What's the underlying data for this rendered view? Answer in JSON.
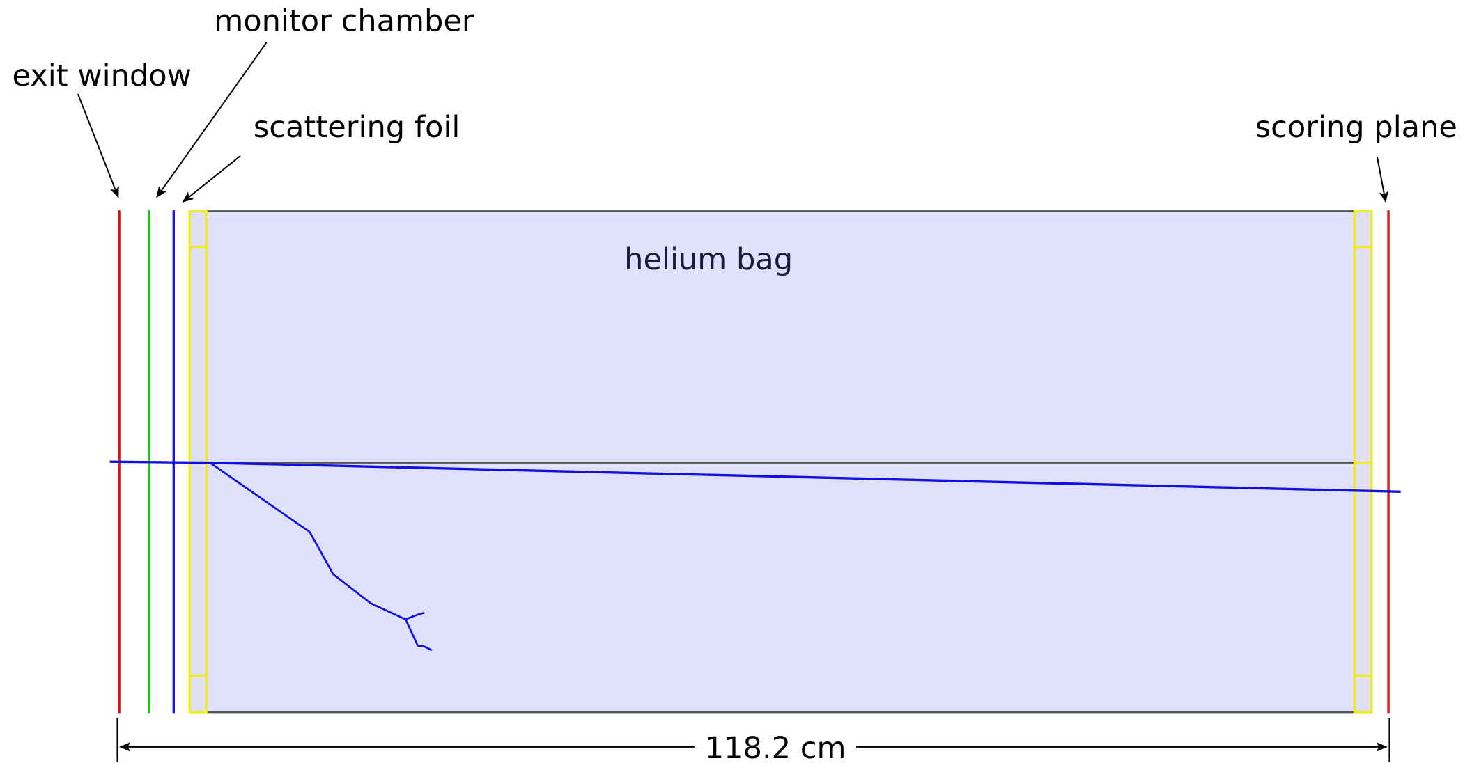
{
  "labels": {
    "exit_window": "exit window",
    "monitor_chamber": "monitor chamber",
    "scattering_foil": "scattering foil",
    "scoring_plane": "scoring plane"
  },
  "region": "helium bag",
  "dimension": "118.2 cm"
}
